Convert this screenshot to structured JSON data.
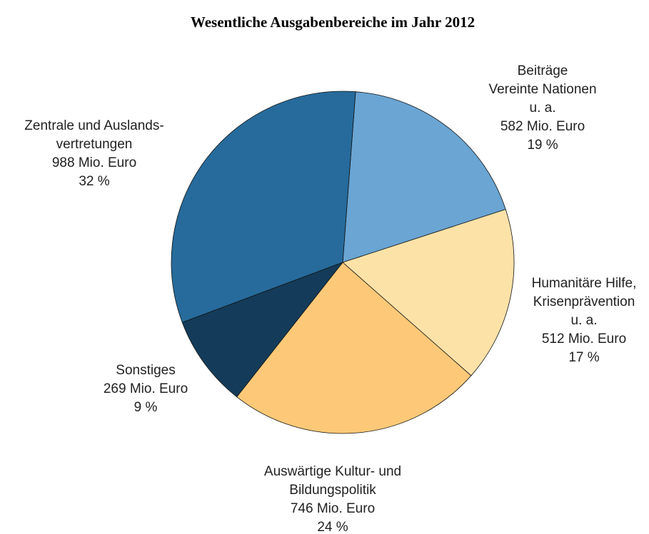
{
  "chart_data": {
    "type": "pie",
    "title": "Wesentliche Ausgabenbereiche im Jahr 2012",
    "categories": [
      [
        "Beiträge",
        "Vereinte Nationen",
        "u. a."
      ],
      [
        "Humanitäre Hilfe,",
        "Krisenprävention",
        "u. a."
      ],
      [
        "Auswärtige Kultur- und",
        "Bildungspolitik"
      ],
      [
        "Sonstiges"
      ],
      [
        "Zentrale und Auslands-",
        "vertretungen"
      ]
    ],
    "values": [
      582,
      512,
      746,
      269,
      988
    ],
    "value_labels": [
      "582 Mio. Euro",
      "512 Mio. Euro",
      "746 Mio. Euro",
      "269 Mio. Euro",
      "988 Mio. Euro"
    ],
    "percent_labels": [
      "19 %",
      "17 %",
      "24 %",
      "9 %",
      "32 %"
    ],
    "colors": [
      "#6aa5d3",
      "#fde2a8",
      "#fdc978",
      "#143c5a",
      "#266b9c"
    ]
  }
}
